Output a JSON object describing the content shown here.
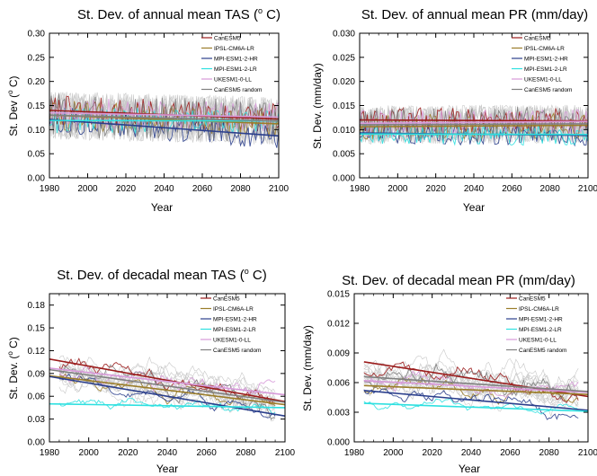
{
  "chart_data": [
    {
      "type": "line",
      "title": "St. Dev. of annual mean TAS (",
      "title_sup": "o",
      "title_end": " C)",
      "xlabel": "Year",
      "ylabel": "St. Dev (",
      "ylabel_sup": "o",
      "ylabel_end": " C)",
      "xlim": [
        1980,
        2100
      ],
      "ylim": [
        0,
        0.3
      ],
      "xticks": [
        "1980",
        "2000",
        "2020",
        "2040",
        "2060",
        "2080",
        "2100"
      ],
      "yticks": [
        "0.00",
        "0.05",
        "0.10",
        "0.15",
        "0.20",
        "0.25",
        "0.30"
      ],
      "legend_position": "top-right",
      "grid": false,
      "series": [
        {
          "name": "CanESM5",
          "color": "#9b1c1c",
          "trend": [
            [
              1980,
              0.14
            ],
            [
              2100,
              0.122
            ]
          ],
          "x_range": [
            1980,
            2100
          ],
          "base": 0.134,
          "amp": 0.035
        },
        {
          "name": "IPSL-CM6A-LR",
          "color": "#9b7d2a",
          "trend": [
            [
              1980,
              0.13
            ],
            [
              2100,
              0.112
            ]
          ],
          "x_range": [
            1980,
            2100
          ],
          "base": 0.124,
          "amp": 0.035
        },
        {
          "name": "MPI-ESM1-2-HR",
          "color": "#2b3f8c",
          "trend": [
            [
              1980,
              0.121
            ],
            [
              2100,
              0.087
            ]
          ],
          "x_range": [
            1980,
            2100
          ],
          "base": 0.108,
          "amp": 0.03
        },
        {
          "name": "MPI-ESM1-2-LR",
          "color": "#2ee0e0",
          "trend": [
            [
              1980,
              0.119
            ],
            [
              2100,
              0.118
            ]
          ],
          "x_range": [
            1980,
            2100
          ],
          "base": 0.112,
          "amp": 0.03
        },
        {
          "name": "UKESM1-0-LL",
          "color": "#d79ad9",
          "trend": [
            [
              1980,
              0.135
            ],
            [
              2100,
              0.126
            ]
          ],
          "x_range": [
            1980,
            2100
          ],
          "base": 0.128,
          "amp": 0.035
        },
        {
          "name": "CanESM5 random",
          "color": "#808080",
          "trend": [
            [
              1980,
              0.13
            ],
            [
              2100,
              0.118
            ]
          ],
          "x_range": [
            1980,
            2100
          ],
          "base": 0.126,
          "amp": 0.05
        }
      ]
    },
    {
      "type": "line",
      "title": "St. Dev. of annual mean PR (mm/day)",
      "xlabel": "Year",
      "ylabel": "St. Dev. (mm/day)",
      "xlim": [
        1980,
        2100
      ],
      "ylim": [
        0,
        0.03
      ],
      "xticks": [
        "1980",
        "2000",
        "2020",
        "2040",
        "2060",
        "2080",
        "2100"
      ],
      "yticks": [
        "0.000",
        "0.005",
        "0.010",
        "0.015",
        "0.020",
        "0.025",
        "0.030"
      ],
      "legend_position": "top-right",
      "grid": false,
      "series": [
        {
          "name": "CanESM5",
          "color": "#9b1c1c",
          "trend": [
            [
              1980,
              0.012
            ],
            [
              2100,
              0.0118
            ]
          ],
          "x_range": [
            1980,
            2100
          ],
          "base": 0.012,
          "amp": 0.003
        },
        {
          "name": "IPSL-CM6A-LR",
          "color": "#9b7d2a",
          "trend": [
            [
              1980,
              0.0106
            ],
            [
              2100,
              0.0109
            ]
          ],
          "x_range": [
            1980,
            2100
          ],
          "base": 0.0106,
          "amp": 0.003
        },
        {
          "name": "MPI-ESM1-2-HR",
          "color": "#2b3f8c",
          "trend": [
            [
              1980,
              0.0093
            ],
            [
              2100,
              0.0088
            ]
          ],
          "x_range": [
            1980,
            2100
          ],
          "base": 0.009,
          "amp": 0.0025
        },
        {
          "name": "MPI-ESM1-2-LR",
          "color": "#2ee0e0",
          "trend": [
            [
              1980,
              0.0091
            ],
            [
              2100,
              0.009
            ]
          ],
          "x_range": [
            1980,
            2100
          ],
          "base": 0.009,
          "amp": 0.0025
        },
        {
          "name": "UKESM1-0-LL",
          "color": "#d79ad9",
          "trend": [
            [
              1980,
              0.0113
            ],
            [
              2100,
              0.0117
            ]
          ],
          "x_range": [
            1980,
            2100
          ],
          "base": 0.0114,
          "amp": 0.003
        },
        {
          "name": "CanESM5 random",
          "color": "#808080",
          "trend": [
            [
              1980,
              0.011
            ],
            [
              2100,
              0.0112
            ]
          ],
          "x_range": [
            1980,
            2100
          ],
          "base": 0.011,
          "amp": 0.004
        }
      ]
    },
    {
      "type": "line",
      "title": "St. Dev. of decadal mean TAS (",
      "title_sup": "o",
      "title_end": " C)",
      "xlabel": "Year",
      "ylabel": "St. Dev. (",
      "ylabel_sup": "o",
      "ylabel_end": " C)",
      "xlim": [
        1980,
        2100
      ],
      "ylim": [
        0,
        0.195
      ],
      "xticks": [
        "1980",
        "2000",
        "2020",
        "2040",
        "2060",
        "2080",
        "2100"
      ],
      "yticks": [
        "0.00",
        "0.03",
        "0.06",
        "0.09",
        "0.12",
        "0.15",
        "0.18"
      ],
      "legend_position": "top-right",
      "grid": false,
      "series": [
        {
          "name": "CanESM5",
          "color": "#9b1c1c",
          "trend": [
            [
              1980,
              0.109
            ],
            [
              2100,
              0.053
            ]
          ],
          "x_range": [
            1985,
            2095
          ],
          "base": 0.088,
          "amp": 0.018
        },
        {
          "name": "IPSL-CM6A-LR",
          "color": "#9b7d2a",
          "trend": [
            [
              1980,
              0.087
            ],
            [
              2100,
              0.049
            ]
          ],
          "x_range": [
            1985,
            2095
          ],
          "base": 0.074,
          "amp": 0.015
        },
        {
          "name": "MPI-ESM1-2-HR",
          "color": "#2b3f8c",
          "trend": [
            [
              1980,
              0.086
            ],
            [
              2100,
              0.034
            ]
          ],
          "x_range": [
            1985,
            2095
          ],
          "base": 0.065,
          "amp": 0.015
        },
        {
          "name": "MPI-ESM1-2-LR",
          "color": "#2ee0e0",
          "trend": [
            [
              1980,
              0.05
            ],
            [
              2100,
              0.045
            ]
          ],
          "x_range": [
            1985,
            2095
          ],
          "base": 0.046,
          "amp": 0.012
        },
        {
          "name": "UKESM1-0-LL",
          "color": "#d79ad9",
          "trend": [
            [
              1980,
              0.097
            ],
            [
              2100,
              0.062
            ]
          ],
          "x_range": [
            1985,
            2095
          ],
          "base": 0.088,
          "amp": 0.02
        },
        {
          "name": "CanESM5 random",
          "color": "#808080",
          "trend": [
            [
              1980,
              0.095
            ],
            [
              2100,
              0.052
            ]
          ],
          "x_range": [
            1985,
            2095
          ],
          "base": 0.085,
          "amp": 0.025
        }
      ]
    },
    {
      "type": "line",
      "title": "St. Dev. of decadal mean PR (mm/day)",
      "xlabel": "Year",
      "ylabel": "St. Dev. (mm/day)",
      "xlim": [
        1980,
        2100
      ],
      "ylim": [
        0,
        0.015
      ],
      "xticks": [
        "1980",
        "2000",
        "2020",
        "2040",
        "2060",
        "2080",
        "2100"
      ],
      "yticks": [
        "0.000",
        "0.003",
        "0.006",
        "0.009",
        "0.012",
        "0.015"
      ],
      "legend_position": "top-right",
      "grid": false,
      "series": [
        {
          "name": "CanESM5",
          "color": "#9b1c1c",
          "trend": [
            [
              1985,
              0.0081
            ],
            [
              2100,
              0.0046
            ]
          ],
          "x_range": [
            1985,
            2095
          ],
          "base": 0.007,
          "amp": 0.0015
        },
        {
          "name": "IPSL-CM6A-LR",
          "color": "#9b7d2a",
          "trend": [
            [
              1985,
              0.0057
            ],
            [
              2100,
              0.0048
            ]
          ],
          "x_range": [
            1985,
            2095
          ],
          "base": 0.0055,
          "amp": 0.0012
        },
        {
          "name": "MPI-ESM1-2-HR",
          "color": "#2b3f8c",
          "trend": [
            [
              1985,
              0.0052
            ],
            [
              2100,
              0.0032
            ]
          ],
          "x_range": [
            1985,
            2095
          ],
          "base": 0.0045,
          "amp": 0.0012
        },
        {
          "name": "MPI-ESM1-2-LR",
          "color": "#2ee0e0",
          "trend": [
            [
              1985,
              0.0039
            ],
            [
              2100,
              0.0031
            ]
          ],
          "x_range": [
            1985,
            2095
          ],
          "base": 0.0036,
          "amp": 0.0008
        },
        {
          "name": "UKESM1-0-LL",
          "color": "#d79ad9",
          "trend": [
            [
              1985,
              0.0062
            ],
            [
              2100,
              0.005
            ]
          ],
          "x_range": [
            1985,
            2095
          ],
          "base": 0.006,
          "amp": 0.0015
        },
        {
          "name": "CanESM5 random",
          "color": "#808080",
          "trend": [
            [
              1985,
              0.0066
            ],
            [
              2100,
              0.0051
            ]
          ],
          "x_range": [
            1985,
            2095
          ],
          "base": 0.0062,
          "amp": 0.002
        }
      ]
    }
  ]
}
